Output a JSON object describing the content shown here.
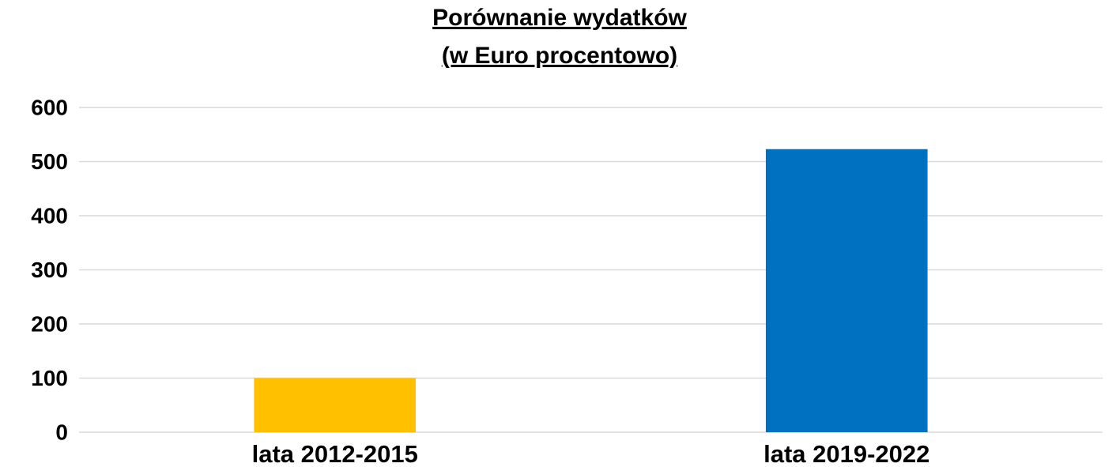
{
  "chart_data": {
    "type": "bar",
    "title": [
      "Porównanie wydatków",
      "(w Euro procentowo)"
    ],
    "categories": [
      "lata 2012-2015",
      "lata 2019-2022"
    ],
    "values": [
      100,
      523
    ],
    "colors": [
      "#ffc000",
      "#0070c0"
    ],
    "ylim": [
      0,
      600
    ],
    "yticks": [
      0,
      100,
      200,
      300,
      400,
      500,
      600
    ],
    "grid": true
  }
}
